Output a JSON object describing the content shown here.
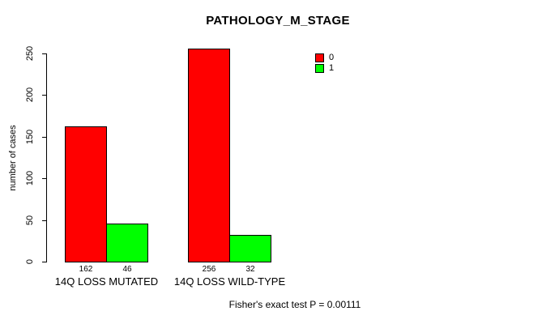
{
  "chart_data": {
    "type": "bar",
    "title": "PATHOLOGY_M_STAGE",
    "ylabel": "number of cases",
    "xlabel": "",
    "ylim": [
      0,
      250
    ],
    "yticks": [
      0,
      50,
      100,
      150,
      200,
      250
    ],
    "categories": [
      "14Q LOSS MUTATED",
      "14Q LOSS WILD-TYPE"
    ],
    "series": [
      {
        "name": "0",
        "color": "#ff0000",
        "values": [
          162,
          256
        ]
      },
      {
        "name": "1",
        "color": "#00ff00",
        "values": [
          46,
          32
        ]
      }
    ],
    "annotation": "Fisher's exact test P = 0.00111",
    "legend_position": "top-right",
    "grid": false,
    "background_color": "#ffffff",
    "axis_color": "#000000",
    "text_color": "#000000"
  }
}
